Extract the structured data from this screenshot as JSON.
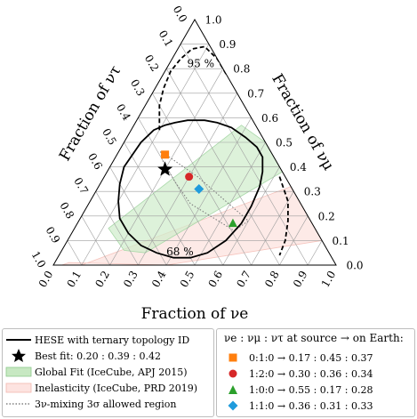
{
  "chart_data": {
    "type": "scatter",
    "axes": {
      "bottom": {
        "label": "Fraction of νe",
        "component": "nu_e"
      },
      "left": {
        "label": "Fraction of ντ",
        "component": "nu_tau"
      },
      "right": {
        "label": "Fraction of νμ",
        "component": "nu_mu"
      }
    },
    "ticks": {
      "bottom": [
        "0.0",
        "0.1",
        "0.2",
        "0.3",
        "0.4",
        "0.5",
        "0.6",
        "0.7",
        "0.8",
        "0.9",
        "1.0"
      ],
      "left": [
        "0.0",
        "0.1",
        "0.2",
        "0.3",
        "0.4",
        "0.5",
        "0.6",
        "0.7",
        "0.8",
        "0.9",
        "1.0"
      ],
      "right": [
        "0.0",
        "0.1",
        "0.2",
        "0.3",
        "0.4",
        "0.5",
        "0.6",
        "0.7",
        "0.8",
        "0.9",
        "1.0"
      ]
    },
    "grid": true,
    "best_fit": {
      "label": "Best fit: 0.20 : 0.39 : 0.42",
      "nu_e": 0.2,
      "nu_mu": 0.39,
      "nu_tau": 0.42,
      "color": "#000000"
    },
    "source_points": [
      {
        "label": "0:1:0 → 0.17 : 0.45 : 0.37",
        "nu_e": 0.17,
        "nu_mu": 0.45,
        "nu_tau": 0.37,
        "marker": "square",
        "color": "#ff7f0e"
      },
      {
        "label": "1:2:0 → 0.30 : 0.36 : 0.34",
        "nu_e": 0.3,
        "nu_mu": 0.36,
        "nu_tau": 0.34,
        "marker": "circle",
        "color": "#d62728"
      },
      {
        "label": "1:0:0 → 0.55 : 0.17 : 0.28",
        "nu_e": 0.55,
        "nu_mu": 0.17,
        "nu_tau": 0.28,
        "marker": "triangle",
        "color": "#2ca02c"
      },
      {
        "label": "1:1:0 → 0.36 : 0.31 : 0.33",
        "nu_e": 0.36,
        "nu_mu": 0.31,
        "nu_tau": 0.33,
        "marker": "diamond",
        "color": "#1f9bdc"
      }
    ],
    "contour_labels": {
      "inner": "68 %",
      "outer": "95 %"
    },
    "contour_68": [
      [
        0.05,
        0.4,
        0.55
      ],
      [
        0.06,
        0.5,
        0.44
      ],
      [
        0.08,
        0.55,
        0.37
      ],
      [
        0.11,
        0.57,
        0.32
      ],
      [
        0.14,
        0.58,
        0.28
      ],
      [
        0.18,
        0.59,
        0.23
      ],
      [
        0.24,
        0.59,
        0.17
      ],
      [
        0.29,
        0.58,
        0.13
      ],
      [
        0.35,
        0.56,
        0.09
      ],
      [
        0.42,
        0.52,
        0.06
      ],
      [
        0.48,
        0.48,
        0.04
      ],
      [
        0.52,
        0.44,
        0.04
      ],
      [
        0.55,
        0.38,
        0.07
      ],
      [
        0.57,
        0.32,
        0.11
      ],
      [
        0.58,
        0.24,
        0.18
      ],
      [
        0.58,
        0.17,
        0.25
      ],
      [
        0.56,
        0.1,
        0.34
      ],
      [
        0.52,
        0.05,
        0.43
      ],
      [
        0.47,
        0.03,
        0.5
      ],
      [
        0.41,
        0.03,
        0.56
      ],
      [
        0.34,
        0.05,
        0.61
      ],
      [
        0.27,
        0.08,
        0.65
      ],
      [
        0.2,
        0.13,
        0.67
      ],
      [
        0.14,
        0.19,
        0.67
      ],
      [
        0.1,
        0.26,
        0.64
      ],
      [
        0.07,
        0.33,
        0.6
      ],
      [
        0.05,
        0.4,
        0.55
      ]
    ],
    "contour_95": [
      [
        0.1,
        0.55,
        0.35
      ],
      [
        0.05,
        0.65,
        0.3
      ],
      [
        0.03,
        0.72,
        0.25
      ],
      [
        0.02,
        0.79,
        0.19
      ],
      [
        0.03,
        0.84,
        0.13
      ],
      [
        0.05,
        0.88,
        0.07
      ],
      [
        0.09,
        0.89,
        0.02
      ],
      [
        0.16,
        0.84,
        0.0
      ],
      [
        0.23,
        0.77,
        0.0
      ]
    ],
    "contour_95_lower": [
      [
        0.62,
        0.36,
        0.02
      ],
      [
        0.7,
        0.26,
        0.04
      ],
      [
        0.74,
        0.18,
        0.08
      ],
      [
        0.77,
        0.1,
        0.13
      ],
      [
        0.78,
        0.04,
        0.18
      ]
    ],
    "globalfit_region": [
      [
        0.12,
        0.15,
        0.73
      ],
      [
        0.38,
        0.57,
        0.05
      ],
      [
        0.5,
        0.5,
        0.0
      ],
      [
        0.62,
        0.38,
        0.0
      ],
      [
        0.3,
        0.05,
        0.65
      ],
      [
        0.22,
        0.06,
        0.72
      ]
    ],
    "inelasticity_region": [
      [
        0.03,
        0.0,
        0.97
      ],
      [
        0.1,
        0.0,
        0.9
      ],
      [
        0.68,
        0.32,
        0.0
      ],
      [
        0.8,
        0.2,
        0.0
      ],
      [
        0.9,
        0.1,
        0.0
      ],
      [
        0.4,
        0.0,
        0.6
      ],
      [
        0.05,
        0.01,
        0.94
      ]
    ],
    "threenu_region": [
      [
        0.15,
        0.46,
        0.39
      ],
      [
        0.19,
        0.44,
        0.37
      ],
      [
        0.33,
        0.36,
        0.31
      ],
      [
        0.6,
        0.18,
        0.22
      ],
      [
        0.57,
        0.14,
        0.29
      ],
      [
        0.36,
        0.25,
        0.39
      ],
      [
        0.26,
        0.34,
        0.4
      ],
      [
        0.17,
        0.43,
        0.4
      ],
      [
        0.15,
        0.46,
        0.39
      ]
    ],
    "legend": [
      {
        "key": "hese",
        "label": "HESE with ternary topology ID"
      },
      {
        "key": "best",
        "label": "Best fit: 0.20 : 0.39 : 0.42"
      },
      {
        "key": "global",
        "label": "Global Fit (IceCube, APJ 2015)"
      },
      {
        "key": "inel",
        "label": "Inelasticity (IceCube, PRD 2019)"
      },
      {
        "key": "threenu",
        "label": "3ν-mixing 3σ allowed region"
      }
    ],
    "legend2_title": "νe : νμ : ντ at source → on Earth:",
    "colors": {
      "globalfit": "#9dd49d",
      "inelasticity": "#f6b8b0",
      "grid": "#9e9e9e",
      "threenu": "#808080"
    }
  }
}
